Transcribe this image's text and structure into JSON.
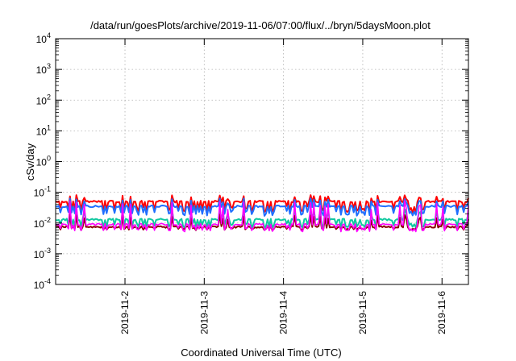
{
  "chart_data": {
    "type": "line",
    "title": "/data/run/goesPlots/archive/2019-11-06/07:00/flux/../bryn/5daysMoon.plot",
    "xlabel": "Coordinated Universal Time (UTC)",
    "ylabel": "cSv/day",
    "y_scale": "log",
    "ylim": [
      0.0001,
      10000
    ],
    "xlim": [
      "2019-11-01 03:00",
      "2019-11-06 08:00"
    ],
    "y_ticks": [
      {
        "base": "10",
        "exp": "-4"
      },
      {
        "base": "10",
        "exp": "-3"
      },
      {
        "base": "10",
        "exp": "-2"
      },
      {
        "base": "10",
        "exp": "-1"
      },
      {
        "base": "10",
        "exp": "0"
      },
      {
        "base": "10",
        "exp": "1"
      },
      {
        "base": "10",
        "exp": "2"
      },
      {
        "base": "10",
        "exp": "3"
      },
      {
        "base": "10",
        "exp": "4"
      }
    ],
    "x_ticks": [
      "2019-11-2",
      "2019-11-3",
      "2019-11-4",
      "2019-11-5",
      "2019-11-6"
    ],
    "grid": true,
    "colors": {
      "red": "#ff0000",
      "blue": "#1f6fff",
      "teal": "#10c8a0",
      "darkred": "#8b0000",
      "magenta": "#ff00ff",
      "purple": "#7a4fbf"
    },
    "series_style": [
      {
        "color": "#ff0000",
        "baseline": 0.05,
        "spike_amp": 1.6,
        "dip_amp": 0.45
      },
      {
        "color": "#1f6fff",
        "baseline": 0.035,
        "spike_amp": 1.8,
        "dip_amp": 0.5
      },
      {
        "color": "#10c8a0",
        "baseline": 0.013,
        "spike_amp": 2.2,
        "dip_amp": 0.55
      },
      {
        "color": "#8b0000",
        "baseline": 0.0075,
        "spike_amp": 2.5,
        "dip_amp": 0.8
      },
      {
        "color": "#ff00ff",
        "baseline": 0.009,
        "spike_amp": 6.0,
        "dip_amp": 0.6
      }
    ]
  }
}
